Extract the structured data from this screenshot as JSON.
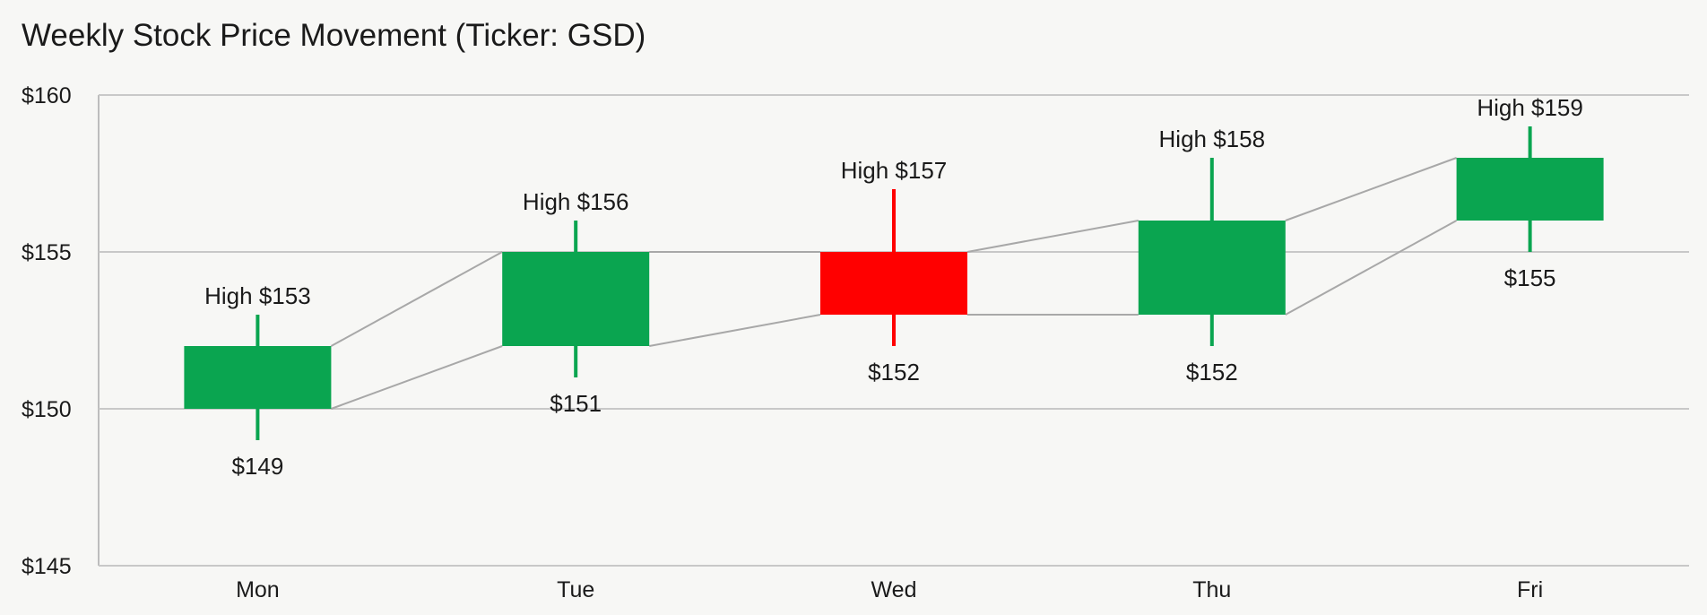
{
  "chart_data": {
    "type": "candlestick",
    "title": "Weekly Stock Price Movement (Ticker: GSD)",
    "xlabel": "",
    "ylabel": "",
    "ylim": [
      145,
      160
    ],
    "yticks": [
      145,
      150,
      155,
      160
    ],
    "ytick_labels": [
      "$145",
      "$150",
      "$155",
      "$160"
    ],
    "categories": [
      "Mon",
      "Tue",
      "Wed",
      "Thu",
      "Fri"
    ],
    "candles": [
      {
        "day": "Mon",
        "open": 150,
        "close": 152,
        "high": 153,
        "low": 149,
        "high_label": "High $153",
        "low_label": "$149"
      },
      {
        "day": "Tue",
        "open": 152,
        "close": 155,
        "high": 156,
        "low": 151,
        "high_label": "High $156",
        "low_label": "$151"
      },
      {
        "day": "Wed",
        "open": 155,
        "close": 153,
        "high": 157,
        "low": 152,
        "high_label": "High $157",
        "low_label": "$152"
      },
      {
        "day": "Thu",
        "open": 153,
        "close": 156,
        "high": 158,
        "low": 152,
        "high_label": "High $158",
        "low_label": "$152"
      },
      {
        "day": "Fri",
        "open": 156,
        "close": 158,
        "high": 159,
        "low": 155,
        "high_label": "High $159",
        "low_label": "$155"
      }
    ],
    "grid": true,
    "colors": {
      "up": "#0aa550",
      "down": "#ff0000",
      "gridline": "#c8c8c8",
      "connector": "#a8a8a8",
      "axis": "#bdbdbd"
    }
  }
}
